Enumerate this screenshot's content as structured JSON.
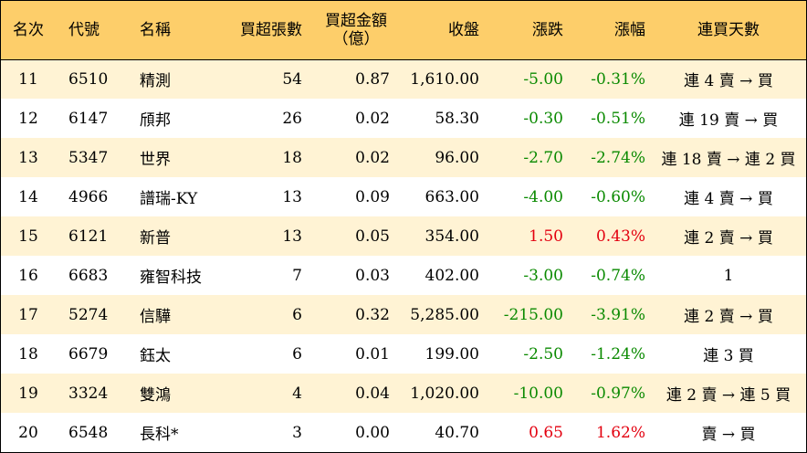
{
  "columns": {
    "rank": "名次",
    "code": "代號",
    "name": "名稱",
    "net_lots": "買超張數",
    "net_amount_line1": "買超金額",
    "net_amount_line2": "（億）",
    "close": "收盤",
    "change": "漲跌",
    "pct": "漲幅",
    "days": "連買天數"
  },
  "colors": {
    "header_bg": "#fdce6a",
    "alt_row_bg": "#fff3d4",
    "up": "#e3000f",
    "down": "#0a8a00"
  },
  "rows": [
    {
      "rank": "11",
      "code": "6510",
      "name": "精測",
      "net_lots": "54",
      "net_amount": "0.87",
      "close": "1,610.00",
      "change": "-5.00",
      "pct": "-0.31%",
      "days": "連 4 賣 → 買",
      "direction": "down"
    },
    {
      "rank": "12",
      "code": "6147",
      "name": "頎邦",
      "net_lots": "26",
      "net_amount": "0.02",
      "close": "58.30",
      "change": "-0.30",
      "pct": "-0.51%",
      "days": "連 19 賣 → 買",
      "direction": "down"
    },
    {
      "rank": "13",
      "code": "5347",
      "name": "世界",
      "net_lots": "18",
      "net_amount": "0.02",
      "close": "96.00",
      "change": "-2.70",
      "pct": "-2.74%",
      "days": "連 18 賣 → 連 2 買",
      "direction": "down"
    },
    {
      "rank": "14",
      "code": "4966",
      "name": "譜瑞-KY",
      "net_lots": "13",
      "net_amount": "0.09",
      "close": "663.00",
      "change": "-4.00",
      "pct": "-0.60%",
      "days": "連 4 賣 → 買",
      "direction": "down"
    },
    {
      "rank": "15",
      "code": "6121",
      "name": "新普",
      "net_lots": "13",
      "net_amount": "0.05",
      "close": "354.00",
      "change": "1.50",
      "pct": "0.43%",
      "days": "連 2 賣 → 買",
      "direction": "up"
    },
    {
      "rank": "16",
      "code": "6683",
      "name": "雍智科技",
      "net_lots": "7",
      "net_amount": "0.03",
      "close": "402.00",
      "change": "-3.00",
      "pct": "-0.74%",
      "days": "1",
      "direction": "down"
    },
    {
      "rank": "17",
      "code": "5274",
      "name": "信驊",
      "net_lots": "6",
      "net_amount": "0.32",
      "close": "5,285.00",
      "change": "-215.00",
      "pct": "-3.91%",
      "days": "連 2 賣 → 買",
      "direction": "down"
    },
    {
      "rank": "18",
      "code": "6679",
      "name": "鈺太",
      "net_lots": "6",
      "net_amount": "0.01",
      "close": "199.00",
      "change": "-2.50",
      "pct": "-1.24%",
      "days": "連 3 買",
      "direction": "down"
    },
    {
      "rank": "19",
      "code": "3324",
      "name": "雙鴻",
      "net_lots": "4",
      "net_amount": "0.04",
      "close": "1,020.00",
      "change": "-10.00",
      "pct": "-0.97%",
      "days": "連 2 賣 → 連 5 買",
      "direction": "down"
    },
    {
      "rank": "20",
      "code": "6548",
      "name": "長科*",
      "net_lots": "3",
      "net_amount": "0.00",
      "close": "40.70",
      "change": "0.65",
      "pct": "1.62%",
      "days": "賣 → 買",
      "direction": "up"
    }
  ]
}
